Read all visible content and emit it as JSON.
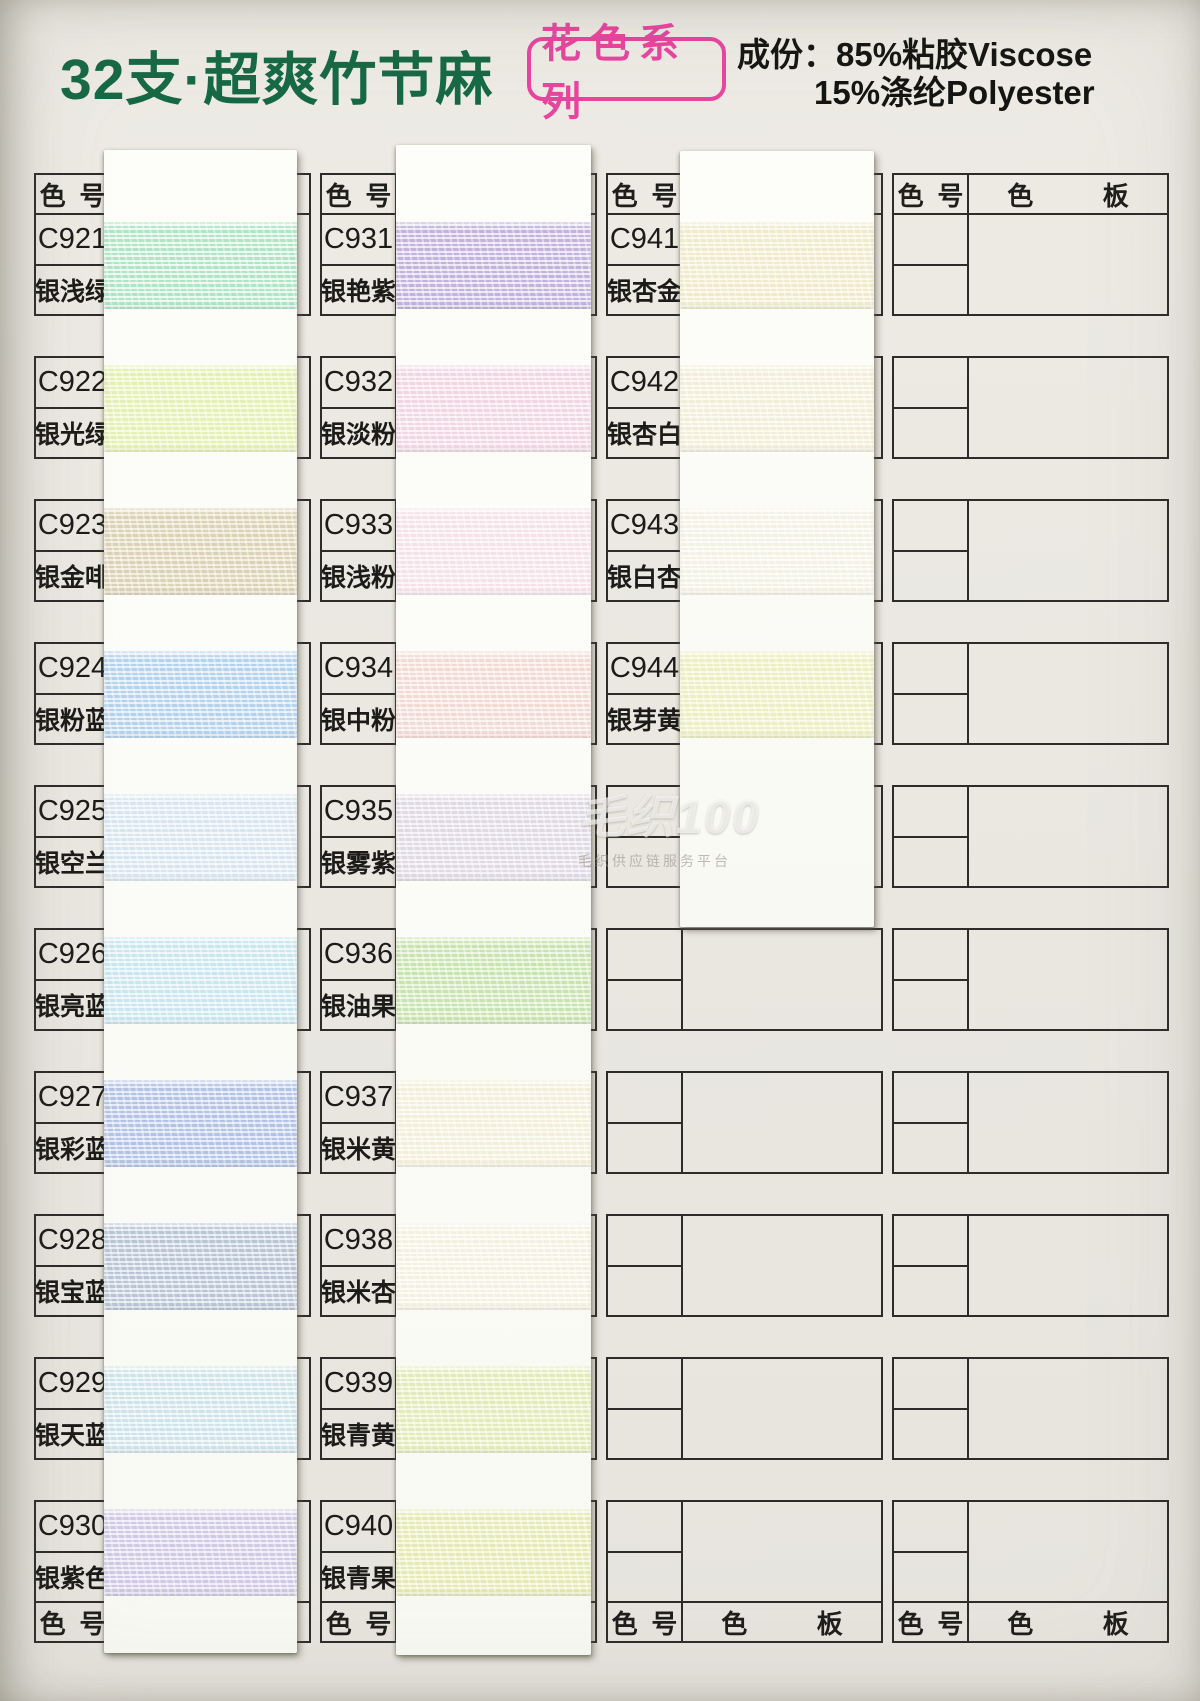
{
  "page": {
    "title": "32支·超爽竹节麻",
    "series_badge": "花色系列",
    "composition_line1": "成份：85%粘胶Viscose",
    "composition_line2": "15%涤纶Polyester"
  },
  "grid_labels": {
    "code_header": "色 号",
    "board_header": "色 板"
  },
  "watermark": {
    "line1": "毛织100",
    "line2": "毛织供应链服务平台"
  },
  "columns": [
    {
      "id": "column-1",
      "colors": [
        {
          "code": "C921",
          "name": "银浅绿",
          "yarn": [
            "#aee5c4",
            "#ecf8f0"
          ]
        },
        {
          "code": "C922",
          "name": "银光绿",
          "yarn": [
            "#e3efb4",
            "#f6fadd"
          ]
        },
        {
          "code": "C923",
          "name": "银金啡",
          "yarn": [
            "#dbd2b6",
            "#f2edde"
          ]
        },
        {
          "code": "C924",
          "name": "银粉蓝",
          "yarn": [
            "#b5d2ec",
            "#e7f0f9"
          ]
        },
        {
          "code": "C925",
          "name": "银空兰",
          "yarn": [
            "#d9e5ee",
            "#f2f7fb"
          ]
        },
        {
          "code": "C926",
          "name": "银亮蓝",
          "yarn": [
            "#c9e5ee",
            "#edf7fa"
          ]
        },
        {
          "code": "C927",
          "name": "银彩蓝",
          "yarn": [
            "#b3c3e5",
            "#e5eaf6"
          ]
        },
        {
          "code": "C928",
          "name": "银宝蓝",
          "yarn": [
            "#b9c5d5",
            "#e6ebf1"
          ]
        },
        {
          "code": "C929",
          "name": "银天蓝",
          "yarn": [
            "#cde2e9",
            "#eef6f8"
          ]
        },
        {
          "code": "C930",
          "name": "银紫色",
          "yarn": [
            "#cfc9e4",
            "#efedf7"
          ]
        }
      ]
    },
    {
      "id": "column-2",
      "colors": [
        {
          "code": "C931",
          "name": "银艳紫",
          "yarn": [
            "#c2b2dc",
            "#ece8f5"
          ]
        },
        {
          "code": "C932",
          "name": "银淡粉",
          "yarn": [
            "#f0d6e2",
            "#faf0f5"
          ]
        },
        {
          "code": "C933",
          "name": "银浅粉",
          "yarn": [
            "#f4e2e8",
            "#fcf5f7"
          ]
        },
        {
          "code": "C934",
          "name": "银中粉",
          "yarn": [
            "#f2dad4",
            "#fbf1ee"
          ]
        },
        {
          "code": "C935",
          "name": "银雾紫",
          "yarn": [
            "#dfd9e3",
            "#f4f2f6"
          ]
        },
        {
          "code": "C936",
          "name": "银油果",
          "yarn": [
            "#c8e3b2",
            "#ebf5de"
          ]
        },
        {
          "code": "C937",
          "name": "银米黄",
          "yarn": [
            "#f2eeda",
            "#fbfaf0"
          ]
        },
        {
          "code": "C938",
          "name": "银米杏",
          "yarn": [
            "#f3f0e1",
            "#fcfbf4"
          ]
        },
        {
          "code": "C939",
          "name": "银青黄",
          "yarn": [
            "#e1eaba",
            "#f5f8de"
          ]
        },
        {
          "code": "C940",
          "name": "银青果",
          "yarn": [
            "#e5e9b8",
            "#f6f8dc"
          ]
        }
      ]
    },
    {
      "id": "column-3",
      "colors": [
        {
          "code": "C941",
          "name": "银杏金",
          "yarn": [
            "#eeeacb",
            "#faf8e9"
          ]
        },
        {
          "code": "C942",
          "name": "银杏白",
          "yarn": [
            "#f1edd8",
            "#fbfaee"
          ]
        },
        {
          "code": "C943",
          "name": "银白杏",
          "yarn": [
            "#f3f1e4",
            "#fcfbf5"
          ]
        },
        {
          "code": "C944",
          "name": "银芽黄",
          "yarn": [
            "#ebedc2",
            "#f8f9e2"
          ]
        }
      ]
    },
    {
      "id": "column-4",
      "colors": []
    }
  ]
}
